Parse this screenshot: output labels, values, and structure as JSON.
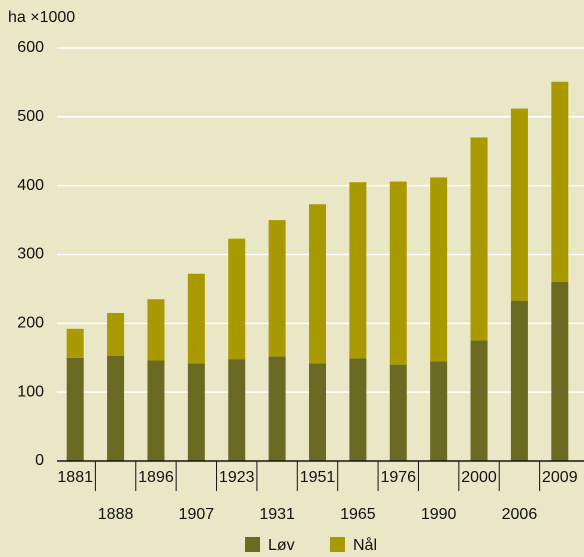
{
  "chart_data": {
    "type": "stacked_bar",
    "y_label": "ha ×1000",
    "categories": [
      "1881",
      "1888",
      "1896",
      "1907",
      "1923",
      "1931",
      "1951",
      "1965",
      "1976",
      "1990",
      "2000",
      "2006",
      "2009"
    ],
    "series": [
      {
        "name": "Løv",
        "color": "#6b6a22",
        "values": [
          150,
          153,
          146,
          142,
          148,
          152,
          142,
          149,
          140,
          145,
          175,
          233,
          260
        ]
      },
      {
        "name": "Nål",
        "color": "#a89a00",
        "values": [
          42,
          62,
          89,
          130,
          175,
          198,
          231,
          256,
          266,
          267,
          295,
          279,
          291
        ]
      }
    ],
    "ylim": [
      0,
      600
    ],
    "yticks": [
      0,
      100,
      200,
      300,
      400,
      500,
      600
    ],
    "grid": true,
    "legend": "bottom"
  }
}
